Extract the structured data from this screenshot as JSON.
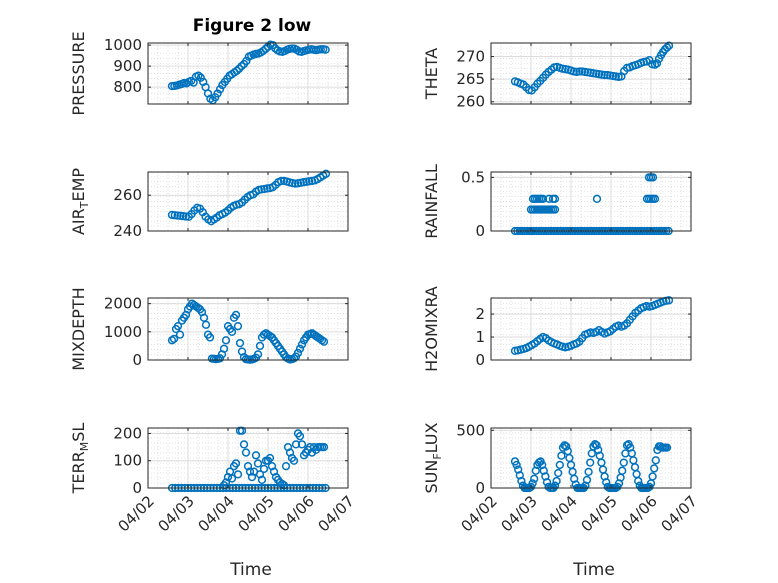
{
  "figure": {
    "title": "Figure 2 low",
    "marker_color": "#0072BD",
    "x_tick_labels": [
      "04/02",
      "04/03",
      "04/04",
      "04/05",
      "04/06",
      "04/07"
    ],
    "x_label": "Time"
  },
  "chart_data": [
    {
      "type": "scatter",
      "ylabel": "PRESSURE",
      "ylim": [
        720,
        1010
      ],
      "yticks": [
        800,
        900,
        1000
      ],
      "xlim": [
        0,
        5
      ],
      "grid": true,
      "x": [
        0.6,
        0.66,
        0.72,
        0.78,
        0.84,
        0.9,
        0.96,
        1.02,
        1.08,
        1.14,
        1.2,
        1.26,
        1.32,
        1.38,
        1.44,
        1.5,
        1.56,
        1.62,
        1.68,
        1.74,
        1.8,
        1.86,
        1.92,
        1.98,
        2.04,
        2.1,
        2.16,
        2.22,
        2.28,
        2.34,
        2.4,
        2.46,
        2.52,
        2.58,
        2.64,
        2.7,
        2.76,
        2.82,
        2.88,
        2.94,
        3.0,
        3.06,
        3.12,
        3.18,
        3.24,
        3.3,
        3.36,
        3.42,
        3.48,
        3.54,
        3.6,
        3.66,
        3.72,
        3.78,
        3.84,
        3.9,
        3.96,
        4.02,
        4.08,
        4.14,
        4.2,
        4.26,
        4.32,
        4.38,
        4.44
      ],
      "y": [
        805,
        806,
        808,
        812,
        815,
        820,
        818,
        825,
        830,
        822,
        850,
        855,
        845,
        825,
        800,
        770,
        745,
        738,
        752,
        770,
        790,
        810,
        825,
        840,
        855,
        862,
        870,
        878,
        888,
        900,
        910,
        925,
        945,
        950,
        955,
        958,
        960,
        965,
        972,
        982,
        992,
        1002,
        1000,
        985,
        975,
        970,
        968,
        972,
        978,
        982,
        984,
        983,
        977,
        970,
        968,
        972,
        975,
        978,
        980,
        978,
        976,
        978,
        980,
        980,
        978
      ]
    },
    {
      "type": "scatter",
      "ylabel": "THETA",
      "ylim": [
        259.5,
        273
      ],
      "yticks": [
        260,
        265,
        270
      ],
      "xlim": [
        0,
        5
      ],
      "grid": true,
      "x": [
        0.6,
        0.67,
        0.74,
        0.81,
        0.88,
        0.95,
        1.02,
        1.09,
        1.16,
        1.23,
        1.3,
        1.37,
        1.44,
        1.51,
        1.58,
        1.65,
        1.72,
        1.79,
        1.86,
        1.93,
        2.0,
        2.07,
        2.14,
        2.21,
        2.28,
        2.35,
        2.42,
        2.49,
        2.56,
        2.63,
        2.7,
        2.77,
        2.84,
        2.91,
        2.98,
        3.05,
        3.12,
        3.19,
        3.26,
        3.33,
        3.4,
        3.47,
        3.54,
        3.61,
        3.68,
        3.75,
        3.82,
        3.89,
        3.96,
        4.03,
        4.1,
        4.15,
        4.2,
        4.25,
        4.3,
        4.35,
        4.4,
        4.45
      ],
      "y": [
        264.5,
        264.3,
        264.0,
        263.8,
        263.2,
        262.6,
        262.5,
        263.2,
        264.0,
        264.6,
        265.3,
        266.0,
        266.6,
        267.1,
        267.6,
        267.7,
        267.5,
        267.3,
        267.2,
        267.1,
        266.9,
        266.7,
        266.6,
        266.7,
        266.7,
        266.6,
        266.5,
        266.4,
        266.3,
        266.2,
        266.1,
        266.0,
        265.9,
        265.9,
        265.8,
        265.7,
        265.6,
        265.5,
        265.6,
        266.8,
        267.5,
        267.6,
        267.9,
        268.1,
        268.3,
        268.6,
        268.8,
        268.9,
        269.2,
        268.3,
        268.2,
        268.5,
        269.5,
        270.3,
        271.0,
        271.6,
        272.0,
        272.4
      ]
    },
    {
      "type": "scatter",
      "ylabel": "AIR_TEMP",
      "ylim": [
        240,
        273
      ],
      "yticks": [
        240,
        260
      ],
      "xlim": [
        0,
        5
      ],
      "grid": true,
      "x": [
        0.6,
        0.67,
        0.74,
        0.81,
        0.88,
        0.95,
        1.02,
        1.09,
        1.16,
        1.23,
        1.3,
        1.37,
        1.44,
        1.51,
        1.58,
        1.65,
        1.72,
        1.79,
        1.86,
        1.93,
        2.0,
        2.07,
        2.14,
        2.21,
        2.28,
        2.35,
        2.42,
        2.49,
        2.56,
        2.63,
        2.7,
        2.77,
        2.84,
        2.91,
        2.98,
        3.05,
        3.12,
        3.19,
        3.26,
        3.33,
        3.4,
        3.47,
        3.54,
        3.61,
        3.68,
        3.75,
        3.82,
        3.89,
        3.96,
        4.03,
        4.1,
        4.17,
        4.24,
        4.31,
        4.38,
        4.45
      ],
      "y": [
        249.0,
        248.8,
        248.6,
        248.5,
        248.3,
        248.1,
        248.0,
        249.5,
        251.5,
        253.0,
        252.5,
        250.5,
        248.0,
        246.5,
        245.5,
        246.5,
        247.5,
        248.8,
        249.5,
        250.3,
        251.5,
        253.0,
        254.0,
        254.7,
        255.0,
        256.0,
        257.5,
        259.0,
        260.0,
        260.5,
        262.0,
        263.0,
        263.3,
        263.5,
        263.8,
        264.0,
        264.5,
        265.8,
        267.3,
        268.0,
        268.0,
        267.7,
        267.2,
        266.8,
        266.5,
        266.7,
        267.0,
        267.3,
        267.5,
        267.8,
        268.0,
        268.3,
        269.0,
        270.0,
        271.0,
        272.0
      ]
    },
    {
      "type": "scatter",
      "ylabel": "RAINFALL",
      "ylim": [
        0,
        0.55
      ],
      "yticks": [
        0,
        0.5
      ],
      "xlim": [
        0,
        5
      ],
      "grid": true,
      "x": [
        0.6,
        0.66,
        0.72,
        0.78,
        0.84,
        0.9,
        0.96,
        1.0,
        1.02,
        1.08,
        1.14,
        1.2,
        1.26,
        1.32,
        1.38,
        1.44,
        1.5,
        1.56,
        1.62,
        1.68,
        1.74,
        1.8,
        1.86,
        1.92,
        1.98,
        2.04,
        2.1,
        2.16,
        2.22,
        2.28,
        2.34,
        2.4,
        2.46,
        2.52,
        2.58,
        2.64,
        2.7,
        2.76,
        2.82,
        2.88,
        2.94,
        3.0,
        3.06,
        3.12,
        3.18,
        3.24,
        3.3,
        3.36,
        3.42,
        3.48,
        3.54,
        3.6,
        3.66,
        3.72,
        3.78,
        3.84,
        3.9,
        3.96,
        4.02,
        4.08,
        4.14,
        4.2,
        4.26,
        4.32,
        4.38,
        4.44,
        1.0,
        1.05,
        1.1,
        1.15,
        1.2,
        1.25,
        1.3,
        1.35,
        1.4,
        1.45,
        1.5,
        1.55,
        1.6,
        1.05,
        1.1,
        1.15,
        1.2,
        1.25,
        1.3,
        1.45,
        1.55,
        1.6,
        2.65,
        3.9,
        3.95,
        4.0,
        4.05,
        4.1,
        3.95,
        4.0,
        4.05
      ],
      "y": [
        0,
        0,
        0,
        0,
        0,
        0,
        0,
        0,
        0,
        0,
        0,
        0,
        0,
        0,
        0,
        0,
        0,
        0,
        0,
        0,
        0,
        0,
        0,
        0,
        0,
        0,
        0,
        0,
        0,
        0,
        0,
        0,
        0,
        0,
        0,
        0,
        0,
        0,
        0,
        0,
        0,
        0,
        0,
        0,
        0,
        0,
        0,
        0,
        0,
        0,
        0,
        0,
        0,
        0,
        0,
        0,
        0,
        0,
        0,
        0,
        0,
        0,
        0,
        0,
        0,
        0,
        0.2,
        0.2,
        0.2,
        0.2,
        0.2,
        0.2,
        0.2,
        0.2,
        0.2,
        0.2,
        0.2,
        0.2,
        0.2,
        0.3,
        0.3,
        0.3,
        0.3,
        0.3,
        0.3,
        0.3,
        0.3,
        0.3,
        0.3,
        0.3,
        0.3,
        0.3,
        0.3,
        0.3,
        0.5,
        0.5,
        0.5
      ]
    },
    {
      "type": "scatter",
      "ylabel": "MIXDEPTH",
      "ylim": [
        0,
        2200
      ],
      "yticks": [
        0,
        1000,
        2000
      ],
      "xlim": [
        0,
        5
      ],
      "grid": true,
      "x": [
        0.6,
        0.65,
        0.7,
        0.75,
        0.8,
        0.85,
        0.9,
        0.95,
        1.0,
        1.05,
        1.1,
        1.15,
        1.2,
        1.25,
        1.3,
        1.35,
        1.4,
        1.45,
        1.5,
        1.55,
        1.6,
        1.65,
        1.7,
        1.75,
        1.8,
        1.85,
        1.9,
        1.95,
        2.0,
        2.05,
        2.1,
        2.15,
        2.2,
        2.25,
        2.3,
        2.35,
        2.4,
        2.45,
        2.5,
        2.55,
        2.6,
        2.65,
        2.7,
        2.75,
        2.8,
        2.85,
        2.9,
        2.95,
        3.0,
        3.05,
        3.1,
        3.15,
        3.2,
        3.25,
        3.3,
        3.35,
        3.4,
        3.45,
        3.5,
        3.55,
        3.6,
        3.65,
        3.7,
        3.75,
        3.8,
        3.85,
        3.9,
        3.95,
        4.0,
        4.05,
        4.1,
        4.15,
        4.2,
        4.25,
        4.3,
        4.35,
        4.4
      ],
      "y": [
        700,
        750,
        1100,
        1200,
        900,
        1400,
        1500,
        1600,
        1800,
        1900,
        2000,
        1950,
        1900,
        1850,
        1800,
        1700,
        1500,
        1250,
        900,
        800,
        50,
        40,
        30,
        40,
        60,
        200,
        400,
        700,
        1200,
        1100,
        1000,
        1500,
        1600,
        1200,
        600,
        300,
        100,
        30,
        20,
        10,
        20,
        40,
        80,
        200,
        500,
        800,
        900,
        950,
        900,
        850,
        800,
        700,
        600,
        500,
        400,
        300,
        200,
        100,
        50,
        20,
        30,
        60,
        120,
        250,
        400,
        550,
        700,
        800,
        900,
        920,
        950,
        900,
        850,
        800,
        750,
        700,
        650
      ]
    },
    {
      "type": "scatter",
      "ylabel": "H2OMIXRA",
      "ylim": [
        0,
        2.7
      ],
      "yticks": [
        0,
        1,
        2
      ],
      "xlim": [
        0,
        5
      ],
      "grid": true,
      "x": [
        0.6,
        0.67,
        0.74,
        0.81,
        0.88,
        0.95,
        1.02,
        1.09,
        1.16,
        1.23,
        1.3,
        1.37,
        1.44,
        1.51,
        1.58,
        1.65,
        1.72,
        1.79,
        1.86,
        1.93,
        2.0,
        2.07,
        2.14,
        2.21,
        2.28,
        2.35,
        2.42,
        2.49,
        2.56,
        2.63,
        2.7,
        2.77,
        2.84,
        2.91,
        2.98,
        3.05,
        3.12,
        3.19,
        3.26,
        3.33,
        3.4,
        3.47,
        3.54,
        3.61,
        3.68,
        3.75,
        3.82,
        3.89,
        3.96,
        4.03,
        4.1,
        4.17,
        4.24,
        4.31,
        4.38,
        4.45
      ],
      "y": [
        0.4,
        0.42,
        0.45,
        0.48,
        0.52,
        0.58,
        0.65,
        0.72,
        0.82,
        0.92,
        1.0,
        0.95,
        0.85,
        0.78,
        0.72,
        0.68,
        0.62,
        0.58,
        0.55,
        0.58,
        0.62,
        0.68,
        0.72,
        0.8,
        0.95,
        1.1,
        1.15,
        1.2,
        1.18,
        1.22,
        1.3,
        1.22,
        1.15,
        1.2,
        1.25,
        1.35,
        1.45,
        1.5,
        1.45,
        1.5,
        1.6,
        1.75,
        1.9,
        2.05,
        2.15,
        2.25,
        2.3,
        2.35,
        2.32,
        2.35,
        2.4,
        2.45,
        2.5,
        2.55,
        2.58,
        2.6
      ]
    },
    {
      "type": "scatter",
      "ylabel": "TERR_MSL",
      "ylim": [
        0,
        220
      ],
      "yticks": [
        0,
        100,
        200
      ],
      "xlim": [
        0,
        5
      ],
      "grid": true,
      "x": [
        0.6,
        0.68,
        0.76,
        0.84,
        0.92,
        1.0,
        1.08,
        1.16,
        1.24,
        1.32,
        1.4,
        1.48,
        1.56,
        1.64,
        1.72,
        1.8,
        1.88,
        1.96,
        2.04,
        2.12,
        2.2,
        2.28,
        2.36,
        2.44,
        2.52,
        2.6,
        2.68,
        2.76,
        2.84,
        2.92,
        3.0,
        3.08,
        3.16,
        3.24,
        3.32,
        3.4,
        3.48,
        3.56,
        3.64,
        3.72,
        3.8,
        3.88,
        3.96,
        4.04,
        4.12,
        4.2,
        4.28,
        4.36,
        4.44,
        1.9,
        1.95,
        2.0,
        2.05,
        2.1,
        2.15,
        2.2,
        2.25,
        2.3,
        2.35,
        2.4,
        2.45,
        2.5,
        2.55,
        2.6,
        2.65,
        2.7,
        2.75,
        2.8,
        2.85,
        2.9,
        2.95,
        3.0,
        3.05,
        3.1,
        3.15,
        3.2,
        3.25,
        3.3,
        3.35,
        3.4,
        3.45,
        3.5,
        3.55,
        3.6,
        3.65,
        3.7,
        3.75,
        3.8,
        3.85,
        3.9,
        3.95,
        4.0,
        4.05,
        4.1,
        4.15,
        4.2,
        4.25,
        4.3,
        4.35,
        4.4
      ],
      "y": [
        0,
        0,
        0,
        0,
        0,
        0,
        0,
        0,
        0,
        0,
        0,
        0,
        0,
        0,
        0,
        0,
        0,
        0,
        0,
        0,
        0,
        0,
        0,
        0,
        0,
        0,
        0,
        0,
        0,
        0,
        0,
        0,
        0,
        0,
        0,
        0,
        0,
        0,
        0,
        0,
        0,
        0,
        0,
        0,
        0,
        0,
        0,
        0,
        0,
        10,
        20,
        40,
        60,
        35,
        80,
        90,
        50,
        210,
        210,
        160,
        130,
        80,
        60,
        40,
        60,
        120,
        90,
        50,
        30,
        70,
        100,
        100,
        110,
        80,
        60,
        40,
        30,
        20,
        15,
        10,
        80,
        150,
        130,
        110,
        100,
        160,
        200,
        190,
        160,
        120,
        130,
        140,
        150,
        130,
        150,
        140,
        150,
        150,
        150,
        150
      ]
    },
    {
      "type": "scatter",
      "ylabel": "SUN_FLUX",
      "ylim": [
        0,
        520
      ],
      "yticks": [
        0,
        500
      ],
      "xlim": [
        0,
        5
      ],
      "grid": true,
      "x": [
        0.6,
        0.64,
        0.68,
        0.72,
        0.76,
        0.8,
        0.84,
        0.88,
        0.92,
        0.96,
        1.0,
        1.04,
        1.08,
        1.12,
        1.16,
        1.2,
        1.24,
        1.28,
        1.32,
        1.36,
        1.4,
        1.44,
        1.48,
        1.52,
        1.56,
        1.6,
        1.64,
        1.68,
        1.72,
        1.76,
        1.8,
        1.84,
        1.88,
        1.92,
        1.96,
        2.0,
        2.04,
        2.08,
        2.12,
        2.16,
        2.2,
        2.24,
        2.28,
        2.32,
        2.36,
        2.4,
        2.44,
        2.48,
        2.52,
        2.56,
        2.6,
        2.64,
        2.68,
        2.72,
        2.76,
        2.8,
        2.84,
        2.88,
        2.92,
        2.96,
        3.0,
        3.04,
        3.08,
        3.12,
        3.16,
        3.2,
        3.24,
        3.28,
        3.32,
        3.36,
        3.4,
        3.44,
        3.48,
        3.52,
        3.56,
        3.6,
        3.64,
        3.68,
        3.72,
        3.76,
        3.8,
        3.84,
        3.88,
        3.92,
        3.96,
        4.0,
        4.04,
        4.08,
        4.12,
        4.16,
        4.2,
        4.24,
        4.28,
        4.32,
        4.36,
        4.4
      ],
      "y": [
        230,
        200,
        160,
        110,
        60,
        20,
        0,
        0,
        0,
        0,
        10,
        40,
        80,
        150,
        200,
        220,
        230,
        200,
        150,
        100,
        50,
        10,
        0,
        0,
        0,
        20,
        60,
        130,
        200,
        280,
        350,
        370,
        360,
        320,
        260,
        200,
        140,
        80,
        30,
        0,
        0,
        0,
        0,
        0,
        20,
        70,
        140,
        220,
        300,
        360,
        380,
        370,
        330,
        280,
        220,
        160,
        100,
        50,
        10,
        0,
        0,
        0,
        0,
        0,
        10,
        40,
        90,
        150,
        220,
        300,
        370,
        380,
        350,
        300,
        240,
        180,
        120,
        60,
        20,
        0,
        0,
        0,
        0,
        0,
        10,
        40,
        100,
        170,
        240,
        330,
        360,
        360,
        350,
        350,
        350,
        350
      ]
    }
  ]
}
